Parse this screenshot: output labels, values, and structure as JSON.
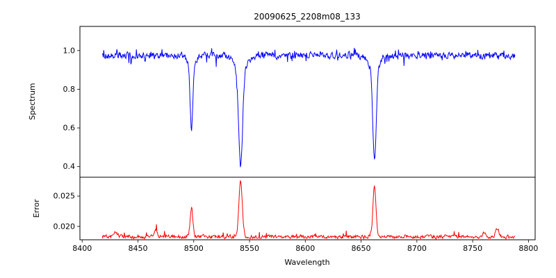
{
  "title": "20090625_2208m08_133",
  "chart_data": {
    "type": "line",
    "title": "20090625_2208m08_133",
    "xlabel": "Wavelength",
    "xlim": [
      8398,
      8806
    ],
    "x_ticks": [
      8400,
      8450,
      8500,
      8550,
      8600,
      8650,
      8700,
      8750,
      8800
    ],
    "x_tick_labels": [
      "8400",
      "8450",
      "8500",
      "8550",
      "8600",
      "8650",
      "8700",
      "8750",
      "8800"
    ],
    "x_data_range": [
      8418,
      8788
    ],
    "grid": false,
    "legend": "none",
    "panels": [
      {
        "name": "spectrum",
        "ylabel": "Spectrum",
        "ylim": [
          0.345,
          1.125
        ],
        "yticks": [
          0.4,
          0.6,
          0.8,
          1.0
        ],
        "ytick_labels": [
          "0.4",
          "0.6",
          "0.8",
          "1.0"
        ],
        "line_color": "#0000ff",
        "continuum_level": 0.975,
        "noise_amplitude": 0.016,
        "absorption_lines": [
          {
            "center": 8498,
            "min_value": 0.57,
            "depth": 0.4,
            "sigma": 1.1
          },
          {
            "center": 8542,
            "min_value": 0.4,
            "depth": 0.575,
            "sigma": 1.7
          },
          {
            "center": 8662,
            "min_value": 0.43,
            "depth": 0.545,
            "sigma": 1.5
          }
        ]
      },
      {
        "name": "error",
        "ylabel": "Error",
        "ylim": [
          0.0178,
          0.0281
        ],
        "yticks": [
          0.02,
          0.025
        ],
        "ytick_labels": [
          "0.020",
          "0.025"
        ],
        "line_color": "#ff0000",
        "baseline_level": 0.0183,
        "noise_amplitude": 0.0003,
        "peaks": [
          {
            "center": 8498,
            "peak_value": 0.023,
            "amplitude": 0.0047,
            "sigma": 1.2
          },
          {
            "center": 8542,
            "peak_value": 0.0275,
            "amplitude": 0.0092,
            "sigma": 1.5
          },
          {
            "center": 8662,
            "peak_value": 0.0265,
            "amplitude": 0.0082,
            "sigma": 1.4
          },
          {
            "center": 8466,
            "peak_value": 0.0195,
            "amplitude": 0.0012,
            "sigma": 1.2
          },
          {
            "center": 8430,
            "peak_value": 0.019,
            "amplitude": 0.0008,
            "sigma": 1.5
          },
          {
            "center": 8772,
            "peak_value": 0.0196,
            "amplitude": 0.0013,
            "sigma": 1.5
          },
          {
            "center": 8760,
            "peak_value": 0.019,
            "amplitude": 0.0007,
            "sigma": 1.2
          }
        ]
      }
    ]
  }
}
